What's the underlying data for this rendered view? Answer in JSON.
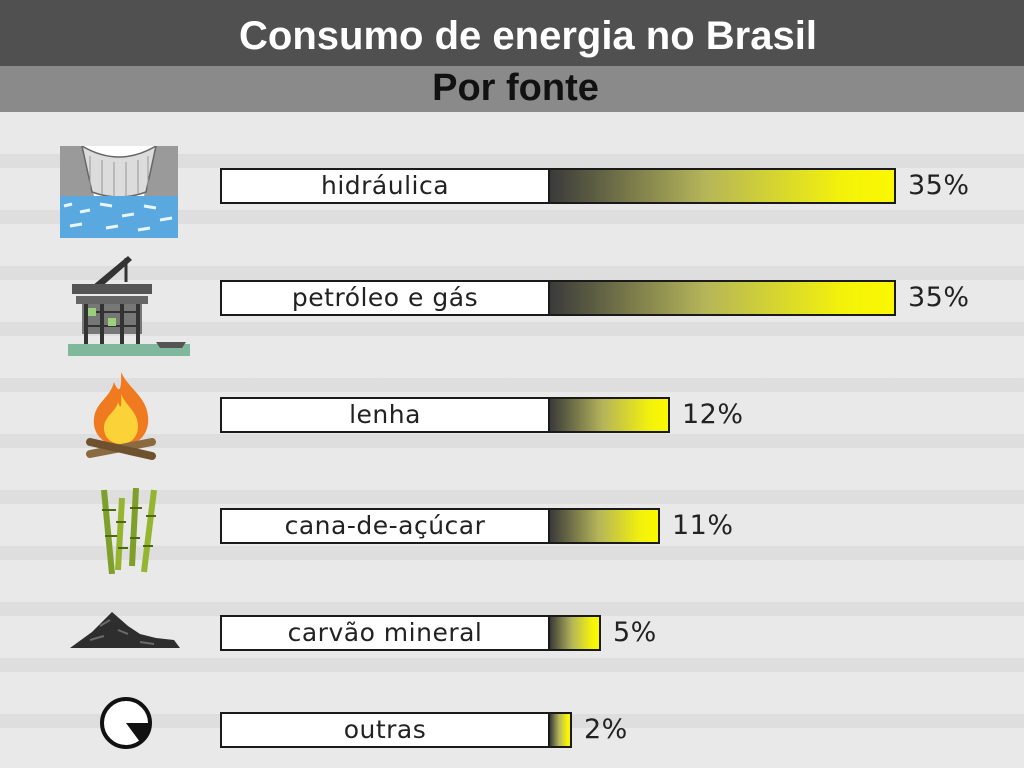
{
  "header": {
    "title": "Consumo de energia no Brasil"
  },
  "chart_data": {
    "type": "bar",
    "orientation": "horizontal",
    "title": "Por fonte",
    "categories": [
      "hidráulica",
      "petróleo e gás",
      "lenha",
      "cana-de-açúcar",
      "carvão mineral",
      "outras"
    ],
    "values": [
      35,
      35,
      12,
      11,
      5,
      2
    ],
    "value_labels": [
      "35%",
      "35%",
      "12%",
      "11%",
      "5%",
      "2%"
    ],
    "unit": "%",
    "xlim": [
      0,
      35
    ],
    "icons": [
      "dam-icon",
      "oil-platform-icon",
      "fire-icon",
      "sugarcane-icon",
      "coal-pile-icon",
      "pie-icon"
    ],
    "fill_colors": [
      "#3a3a3a",
      "#f4f20a"
    ],
    "grid": false,
    "legend": "none"
  }
}
